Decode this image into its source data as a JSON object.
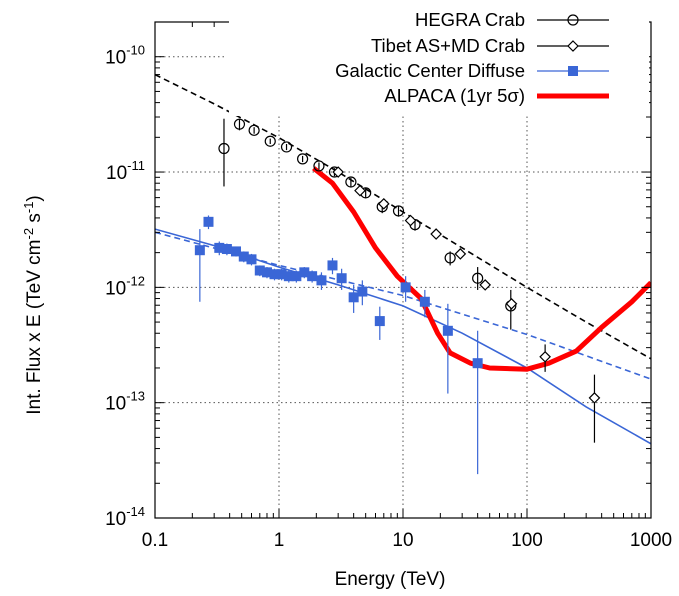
{
  "chart_data": {
    "type": "scatter",
    "title": "",
    "xlabel": "Energy (TeV)",
    "ylabel": {
      "prefix": "Int. Flux x E (TeV cm",
      "exp1": "-2",
      "mid": " s",
      "exp2": "-1",
      "suffix": ")"
    },
    "xscale": "log",
    "yscale": "log",
    "xlim": [
      0.1,
      1000
    ],
    "ylim": [
      1e-14,
      2e-10
    ],
    "grid": true,
    "grid_style": "dotted",
    "legend_position": "top-right",
    "x_ticks": [
      {
        "value": 0.1,
        "label": "0.1"
      },
      {
        "value": 1,
        "label": "1"
      },
      {
        "value": 10,
        "label": "10"
      },
      {
        "value": 100,
        "label": "100"
      },
      {
        "value": 1000,
        "label": "1000"
      }
    ],
    "y_ticks": [
      {
        "value": 1e-14,
        "base": "10",
        "exp": "-14"
      },
      {
        "value": 1e-13,
        "base": "10",
        "exp": "-13"
      },
      {
        "value": 1e-12,
        "base": "10",
        "exp": "-12"
      },
      {
        "value": 1e-11,
        "base": "10",
        "exp": "-11"
      },
      {
        "value": 1e-10,
        "base": "10",
        "exp": "-10"
      }
    ],
    "series": [
      {
        "name": "HEGRA Crab",
        "marker": "open-circle",
        "color": "#000000",
        "points": [
          {
            "x": 0.36,
            "y": 1.6e-11,
            "ylo": 7.5e-12,
            "yhi": 2.9e-11
          },
          {
            "x": 0.48,
            "y": 2.6e-11,
            "ylo": 2.3e-11,
            "yhi": 2.9e-11
          },
          {
            "x": 0.63,
            "y": 2.3e-11,
            "ylo": 2.15e-11,
            "yhi": 2.45e-11
          },
          {
            "x": 0.85,
            "y": 1.85e-11,
            "ylo": 1.75e-11,
            "yhi": 1.95e-11
          },
          {
            "x": 1.15,
            "y": 1.65e-11,
            "ylo": 1.55e-11,
            "yhi": 1.75e-11
          },
          {
            "x": 1.55,
            "y": 1.3e-11,
            "ylo": 1.22e-11,
            "yhi": 1.38e-11
          },
          {
            "x": 2.1,
            "y": 1.13e-11,
            "ylo": 1.05e-11,
            "yhi": 1.21e-11
          },
          {
            "x": 2.8,
            "y": 1e-11,
            "ylo": 9.2e-12,
            "yhi": 1.08e-11
          },
          {
            "x": 3.8,
            "y": 8.2e-12,
            "ylo": 7.5e-12,
            "yhi": 8.9e-12
          },
          {
            "x": 5.0,
            "y": 6.6e-12,
            "ylo": 6e-12,
            "yhi": 7.2e-12
          },
          {
            "x": 6.8,
            "y": 5e-12,
            "ylo": 4.4e-12,
            "yhi": 5.6e-12
          },
          {
            "x": 9.2,
            "y": 4.6e-12,
            "ylo": 4.1e-12,
            "yhi": 5.1e-12
          },
          {
            "x": 12.5,
            "y": 3.5e-12,
            "ylo": 3.1e-12,
            "yhi": 3.9e-12
          },
          {
            "x": 24,
            "y": 1.8e-12,
            "ylo": 1.55e-12,
            "yhi": 2.05e-12
          },
          {
            "x": 40,
            "y": 1.2e-12,
            "ylo": 9.5e-13,
            "yhi": 1.5e-12
          },
          {
            "x": 74,
            "y": 6.9e-13,
            "ylo": 4.3e-13,
            "yhi": 9.5e-13
          }
        ]
      },
      {
        "name": "Tibet AS+MD Crab",
        "marker": "open-diamond",
        "color": "#000000",
        "points": [
          {
            "x": 3.0,
            "y": 1e-11,
            "ylo": 9.3e-12,
            "yhi": 1.07e-11
          },
          {
            "x": 4.5,
            "y": 6.9e-12,
            "ylo": 6.4e-12,
            "yhi": 7.4e-12
          },
          {
            "x": 7.0,
            "y": 5.3e-12,
            "ylo": 4.9e-12,
            "yhi": 5.7e-12
          },
          {
            "x": 11.5,
            "y": 3.8e-12,
            "ylo": 3.5e-12,
            "yhi": 4.1e-12
          },
          {
            "x": 18.5,
            "y": 2.9e-12,
            "ylo": 2.7e-12,
            "yhi": 3.1e-12
          },
          {
            "x": 29,
            "y": 1.95e-12,
            "ylo": 1.8e-12,
            "yhi": 2.1e-12
          },
          {
            "x": 46,
            "y": 1.05e-12,
            "ylo": 9.5e-13,
            "yhi": 1.15e-12
          },
          {
            "x": 75,
            "y": 7.2e-13,
            "ylo": 6.4e-13,
            "yhi": 8e-13
          },
          {
            "x": 140,
            "y": 2.5e-13,
            "ylo": 1.85e-13,
            "yhi": 3.2e-13
          },
          {
            "x": 350,
            "y": 1.1e-13,
            "ylo": 4.5e-14,
            "yhi": 1.75e-13
          }
        ]
      },
      {
        "name": "Galactic Center Diffuse",
        "marker": "filled-square",
        "color": "#3a66d6",
        "points": [
          {
            "x": 0.23,
            "y": 2.1e-12,
            "ylo": 7.5e-13,
            "yhi": 3.2e-12
          },
          {
            "x": 0.27,
            "y": 3.7e-12,
            "ylo": 3.2e-12,
            "yhi": 4.2e-12
          },
          {
            "x": 0.33,
            "y": 2.2e-12,
            "ylo": 1.9e-12,
            "yhi": 2.5e-12
          },
          {
            "x": 0.38,
            "y": 2.15e-12,
            "ylo": 1.9e-12,
            "yhi": 2.4e-12
          },
          {
            "x": 0.45,
            "y": 2.05e-12,
            "ylo": 1.85e-12,
            "yhi": 2.25e-12
          },
          {
            "x": 0.52,
            "y": 1.85e-12,
            "ylo": 1.65e-12,
            "yhi": 2.05e-12
          },
          {
            "x": 0.6,
            "y": 1.75e-12,
            "ylo": 1.55e-12,
            "yhi": 1.95e-12
          },
          {
            "x": 0.7,
            "y": 1.4e-12,
            "ylo": 1.25e-12,
            "yhi": 1.55e-12
          },
          {
            "x": 0.8,
            "y": 1.35e-12,
            "ylo": 1.2e-12,
            "yhi": 1.5e-12
          },
          {
            "x": 0.92,
            "y": 1.3e-12,
            "ylo": 1.15e-12,
            "yhi": 1.45e-12
          },
          {
            "x": 1.05,
            "y": 1.3e-12,
            "ylo": 1.15e-12,
            "yhi": 1.45e-12
          },
          {
            "x": 1.2,
            "y": 1.25e-12,
            "ylo": 1.1e-12,
            "yhi": 1.4e-12
          },
          {
            "x": 1.38,
            "y": 1.25e-12,
            "ylo": 1.1e-12,
            "yhi": 1.4e-12
          },
          {
            "x": 1.6,
            "y": 1.35e-12,
            "ylo": 1.2e-12,
            "yhi": 1.5e-12
          },
          {
            "x": 1.85,
            "y": 1.25e-12,
            "ylo": 1.1e-12,
            "yhi": 1.4e-12
          },
          {
            "x": 2.2,
            "y": 1.15e-12,
            "ylo": 9.5e-13,
            "yhi": 1.35e-12
          },
          {
            "x": 2.7,
            "y": 1.55e-12,
            "ylo": 1.3e-12,
            "yhi": 1.8e-12
          },
          {
            "x": 3.2,
            "y": 1.2e-12,
            "ylo": 9.5e-13,
            "yhi": 1.45e-12
          },
          {
            "x": 4.0,
            "y": 8.2e-13,
            "ylo": 6e-13,
            "yhi": 1.05e-12
          },
          {
            "x": 4.7,
            "y": 9.2e-13,
            "ylo": 7e-13,
            "yhi": 1.15e-12
          },
          {
            "x": 6.5,
            "y": 5.1e-13,
            "ylo": 3.5e-13,
            "yhi": 6.8e-13
          },
          {
            "x": 10.5,
            "y": 1e-12,
            "ylo": 7.5e-13,
            "yhi": 1.25e-12
          },
          {
            "x": 15,
            "y": 7.5e-13,
            "ylo": 5.5e-13,
            "yhi": 9.5e-13
          },
          {
            "x": 23,
            "y": 4.2e-13,
            "ylo": 1.2e-13,
            "yhi": 7.2e-13
          },
          {
            "x": 40,
            "y": 2.2e-13,
            "ylo": 2.4e-14,
            "yhi": 4.2e-13
          }
        ]
      },
      {
        "name": "ALPACA (1yr 5σ)",
        "type": "line",
        "color": "#ff0000",
        "points": [
          {
            "x": 1.9,
            "y": 1.08e-11
          },
          {
            "x": 2.7,
            "y": 8e-12
          },
          {
            "x": 4.0,
            "y": 4.5e-12
          },
          {
            "x": 6.0,
            "y": 2.2e-12
          },
          {
            "x": 9.0,
            "y": 1.25e-12
          },
          {
            "x": 14,
            "y": 8e-13
          },
          {
            "x": 19,
            "y": 4e-13
          },
          {
            "x": 24,
            "y": 2.7e-13
          },
          {
            "x": 35,
            "y": 2.2e-13
          },
          {
            "x": 50,
            "y": 2e-13
          },
          {
            "x": 100,
            "y": 1.95e-13
          },
          {
            "x": 150,
            "y": 2.2e-13
          },
          {
            "x": 250,
            "y": 2.8e-13
          },
          {
            "x": 400,
            "y": 4.5e-13
          },
          {
            "x": 700,
            "y": 7.5e-13
          },
          {
            "x": 1000,
            "y": 1.1e-12
          }
        ]
      }
    ],
    "fit_lines": [
      {
        "color": "#000000",
        "style": "dashed",
        "points": [
          {
            "x": 0.1,
            "y": 7e-11
          },
          {
            "x": 0.3,
            "y": 3.9e-11
          },
          {
            "x": 1,
            "y": 1.98e-11
          },
          {
            "x": 3,
            "y": 1e-11
          },
          {
            "x": 10,
            "y": 4.5e-12
          },
          {
            "x": 30,
            "y": 2.2e-12
          },
          {
            "x": 100,
            "y": 1e-12
          },
          {
            "x": 300,
            "y": 5e-13
          },
          {
            "x": 1000,
            "y": 2.4e-13
          }
        ]
      },
      {
        "color": "#3a66d6",
        "style": "dashed",
        "points": [
          {
            "x": 0.1,
            "y": 3e-12
          },
          {
            "x": 1,
            "y": 1.55e-12
          },
          {
            "x": 10,
            "y": 8.5e-13
          },
          {
            "x": 100,
            "y": 3.9e-13
          },
          {
            "x": 1000,
            "y": 1.6e-13
          }
        ]
      },
      {
        "color": "#3a66d6",
        "style": "solid",
        "points": [
          {
            "x": 0.1,
            "y": 3.2e-12
          },
          {
            "x": 0.3,
            "y": 2.3e-12
          },
          {
            "x": 1,
            "y": 1.5e-12
          },
          {
            "x": 3,
            "y": 1.05e-12
          },
          {
            "x": 10,
            "y": 6.9e-13
          },
          {
            "x": 30,
            "y": 4e-13
          },
          {
            "x": 100,
            "y": 2e-13
          },
          {
            "x": 300,
            "y": 9.2e-14
          },
          {
            "x": 1000,
            "y": 4.4e-14
          }
        ]
      }
    ]
  }
}
